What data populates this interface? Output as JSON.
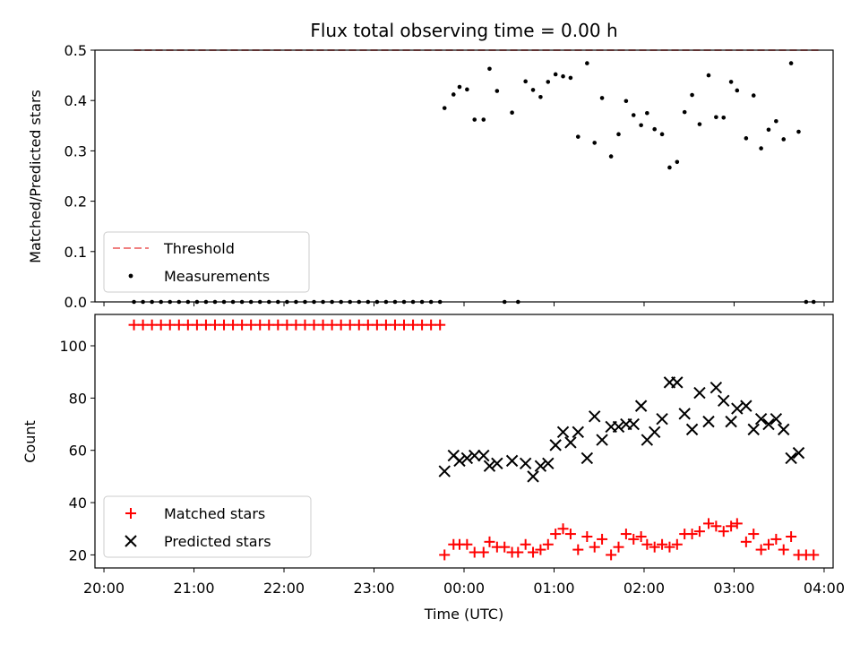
{
  "chart_data": [
    {
      "type": "scatter",
      "title": "Flux total observing time = 0.00 h",
      "ylabel": "Matched/Predicted stars",
      "xlim": [
        "20:00",
        "04:00"
      ],
      "ylim": [
        0,
        0.5
      ],
      "yticks": [
        "0.0",
        "0.1",
        "0.2",
        "0.3",
        "0.4",
        "0.5"
      ],
      "legend": {
        "placement": "lower-left",
        "entries": [
          "Threshold",
          "Measurements"
        ]
      },
      "series": [
        {
          "name": "Threshold",
          "style": "dashed-line",
          "color": "#f08080",
          "points": [
            [
              "20:20",
              0.5
            ],
            [
              "03:58",
              0.5
            ]
          ]
        },
        {
          "name": "Measurements",
          "style": "dot",
          "color": "#000000",
          "points": [
            [
              "20:20",
              0
            ],
            [
              "20:26",
              0
            ],
            [
              "20:32",
              0
            ],
            [
              "20:38",
              0
            ],
            [
              "20:44",
              0
            ],
            [
              "20:50",
              0
            ],
            [
              "20:56",
              0
            ],
            [
              "21:02",
              0
            ],
            [
              "21:08",
              0
            ],
            [
              "21:14",
              0
            ],
            [
              "21:20",
              0
            ],
            [
              "21:26",
              0
            ],
            [
              "21:32",
              0
            ],
            [
              "21:38",
              0
            ],
            [
              "21:44",
              0
            ],
            [
              "21:50",
              0
            ],
            [
              "21:56",
              0
            ],
            [
              "22:02",
              0
            ],
            [
              "22:08",
              0
            ],
            [
              "22:14",
              0
            ],
            [
              "22:20",
              0
            ],
            [
              "22:26",
              0
            ],
            [
              "22:32",
              0
            ],
            [
              "22:38",
              0
            ],
            [
              "22:44",
              0
            ],
            [
              "22:50",
              0
            ],
            [
              "22:56",
              0
            ],
            [
              "23:02",
              0
            ],
            [
              "23:08",
              0
            ],
            [
              "23:14",
              0
            ],
            [
              "23:20",
              0
            ],
            [
              "23:26",
              0
            ],
            [
              "23:32",
              0
            ],
            [
              "23:38",
              0
            ],
            [
              "23:44",
              0
            ],
            [
              "23:47",
              0.385
            ],
            [
              "23:53",
              0.412
            ],
            [
              "23:57",
              0.427
            ],
            [
              "00:02",
              0.422
            ],
            [
              "00:07",
              0.362
            ],
            [
              "00:13",
              0.362
            ],
            [
              "00:17",
              0.463
            ],
            [
              "00:22",
              0.419
            ],
            [
              "00:27",
              0
            ],
            [
              "00:32",
              0.376
            ],
            [
              "00:36",
              0
            ],
            [
              "00:41",
              0.438
            ],
            [
              "00:46",
              0.421
            ],
            [
              "00:51",
              0.407
            ],
            [
              "00:56",
              0.437
            ],
            [
              "01:01",
              0.452
            ],
            [
              "01:06",
              0.448
            ],
            [
              "01:11",
              0.445
            ],
            [
              "01:16",
              0.328
            ],
            [
              "01:22",
              0.474
            ],
            [
              "01:27",
              0.316
            ],
            [
              "01:32",
              0.405
            ],
            [
              "01:38",
              0.289
            ],
            [
              "01:43",
              0.333
            ],
            [
              "01:48",
              0.399
            ],
            [
              "01:53",
              0.371
            ],
            [
              "01:58",
              0.351
            ],
            [
              "02:02",
              0.375
            ],
            [
              "02:07",
              0.343
            ],
            [
              "02:12",
              0.333
            ],
            [
              "02:17",
              0.267
            ],
            [
              "02:22",
              0.278
            ],
            [
              "02:27",
              0.377
            ],
            [
              "02:32",
              0.411
            ],
            [
              "02:37",
              0.353
            ],
            [
              "02:43",
              0.45
            ],
            [
              "02:48",
              0.367
            ],
            [
              "02:53",
              0.366
            ],
            [
              "02:58",
              0.437
            ],
            [
              "03:02",
              0.42
            ],
            [
              "03:08",
              0.325
            ],
            [
              "03:13",
              0.41
            ],
            [
              "03:18",
              0.305
            ],
            [
              "03:23",
              0.342
            ],
            [
              "03:28",
              0.359
            ],
            [
              "03:33",
              0.323
            ],
            [
              "03:38",
              0.474
            ],
            [
              "03:43",
              0.338
            ],
            [
              "03:48",
              0
            ],
            [
              "03:53",
              0
            ]
          ]
        }
      ]
    },
    {
      "type": "scatter",
      "xlabel": "Time (UTC)",
      "ylabel": "Count",
      "xlim": [
        "20:00",
        "04:00"
      ],
      "xticks": [
        "20:00",
        "21:00",
        "22:00",
        "23:00",
        "00:00",
        "01:00",
        "02:00",
        "03:00",
        "04:00"
      ],
      "ylim": [
        15,
        112
      ],
      "yticks": [
        "20",
        "40",
        "60",
        "80",
        "100"
      ],
      "legend": {
        "placement": "lower-left",
        "entries": [
          "Matched stars",
          "Predicted stars"
        ]
      },
      "series": [
        {
          "name": "Matched stars",
          "marker": "plus",
          "color": "#ff0000",
          "points": [
            [
              "20:20",
              108
            ],
            [
              "20:26",
              108
            ],
            [
              "20:32",
              108
            ],
            [
              "20:38",
              108
            ],
            [
              "20:44",
              108
            ],
            [
              "20:50",
              108
            ],
            [
              "20:56",
              108
            ],
            [
              "21:02",
              108
            ],
            [
              "21:08",
              108
            ],
            [
              "21:14",
              108
            ],
            [
              "21:20",
              108
            ],
            [
              "21:26",
              108
            ],
            [
              "21:32",
              108
            ],
            [
              "21:38",
              108
            ],
            [
              "21:44",
              108
            ],
            [
              "21:50",
              108
            ],
            [
              "21:56",
              108
            ],
            [
              "22:02",
              108
            ],
            [
              "22:08",
              108
            ],
            [
              "22:14",
              108
            ],
            [
              "22:20",
              108
            ],
            [
              "22:26",
              108
            ],
            [
              "22:32",
              108
            ],
            [
              "22:38",
              108
            ],
            [
              "22:44",
              108
            ],
            [
              "22:50",
              108
            ],
            [
              "22:56",
              108
            ],
            [
              "23:02",
              108
            ],
            [
              "23:08",
              108
            ],
            [
              "23:14",
              108
            ],
            [
              "23:20",
              108
            ],
            [
              "23:26",
              108
            ],
            [
              "23:32",
              108
            ],
            [
              "23:38",
              108
            ],
            [
              "23:44",
              108
            ],
            [
              "23:47",
              20
            ],
            [
              "23:53",
              24
            ],
            [
              "23:57",
              24
            ],
            [
              "00:02",
              24
            ],
            [
              "00:07",
              21
            ],
            [
              "00:13",
              21
            ],
            [
              "00:17",
              25
            ],
            [
              "00:22",
              23
            ],
            [
              "00:27",
              23
            ],
            [
              "00:32",
              21
            ],
            [
              "00:36",
              21
            ],
            [
              "00:41",
              24
            ],
            [
              "00:46",
              21
            ],
            [
              "00:51",
              22
            ],
            [
              "00:56",
              24
            ],
            [
              "01:01",
              28
            ],
            [
              "01:06",
              30
            ],
            [
              "01:11",
              28
            ],
            [
              "01:16",
              22
            ],
            [
              "01:22",
              27
            ],
            [
              "01:27",
              23
            ],
            [
              "01:32",
              26
            ],
            [
              "01:38",
              20
            ],
            [
              "01:43",
              23
            ],
            [
              "01:48",
              28
            ],
            [
              "01:53",
              26
            ],
            [
              "01:58",
              27
            ],
            [
              "02:02",
              24
            ],
            [
              "02:07",
              23
            ],
            [
              "02:12",
              24
            ],
            [
              "02:17",
              23
            ],
            [
              "02:22",
              24
            ],
            [
              "02:27",
              28
            ],
            [
              "02:32",
              28
            ],
            [
              "02:37",
              29
            ],
            [
              "02:43",
              32
            ],
            [
              "02:48",
              31
            ],
            [
              "02:53",
              29
            ],
            [
              "02:58",
              31
            ],
            [
              "03:02",
              32
            ],
            [
              "03:08",
              25
            ],
            [
              "03:13",
              28
            ],
            [
              "03:18",
              22
            ],
            [
              "03:23",
              24
            ],
            [
              "03:28",
              26
            ],
            [
              "03:33",
              22
            ],
            [
              "03:38",
              27
            ],
            [
              "03:43",
              20
            ],
            [
              "03:48",
              20
            ],
            [
              "03:53",
              20
            ]
          ]
        },
        {
          "name": "Predicted stars",
          "marker": "x",
          "color": "#000000",
          "points": [
            [
              "23:47",
              52
            ],
            [
              "23:53",
              58
            ],
            [
              "23:57",
              56
            ],
            [
              "00:02",
              57
            ],
            [
              "00:07",
              58
            ],
            [
              "00:13",
              58
            ],
            [
              "00:17",
              54
            ],
            [
              "00:22",
              55
            ],
            [
              "00:32",
              56
            ],
            [
              "00:41",
              55
            ],
            [
              "00:46",
              50
            ],
            [
              "00:51",
              54
            ],
            [
              "00:56",
              55
            ],
            [
              "01:01",
              62
            ],
            [
              "01:06",
              67
            ],
            [
              "01:11",
              63
            ],
            [
              "01:16",
              67
            ],
            [
              "01:22",
              57
            ],
            [
              "01:27",
              73
            ],
            [
              "01:32",
              64
            ],
            [
              "01:38",
              69
            ],
            [
              "01:43",
              69
            ],
            [
              "01:48",
              70
            ],
            [
              "01:53",
              70
            ],
            [
              "01:58",
              77
            ],
            [
              "02:02",
              64
            ],
            [
              "02:07",
              67
            ],
            [
              "02:12",
              72
            ],
            [
              "02:17",
              86
            ],
            [
              "02:22",
              86
            ],
            [
              "02:27",
              74
            ],
            [
              "02:32",
              68
            ],
            [
              "02:37",
              82
            ],
            [
              "02:43",
              71
            ],
            [
              "02:48",
              84
            ],
            [
              "02:53",
              79
            ],
            [
              "02:58",
              71
            ],
            [
              "03:02",
              76
            ],
            [
              "03:08",
              77
            ],
            [
              "03:13",
              68
            ],
            [
              "03:18",
              72
            ],
            [
              "03:23",
              70
            ],
            [
              "03:28",
              72
            ],
            [
              "03:33",
              68
            ],
            [
              "03:38",
              57
            ],
            [
              "03:43",
              59
            ]
          ]
        }
      ]
    }
  ]
}
